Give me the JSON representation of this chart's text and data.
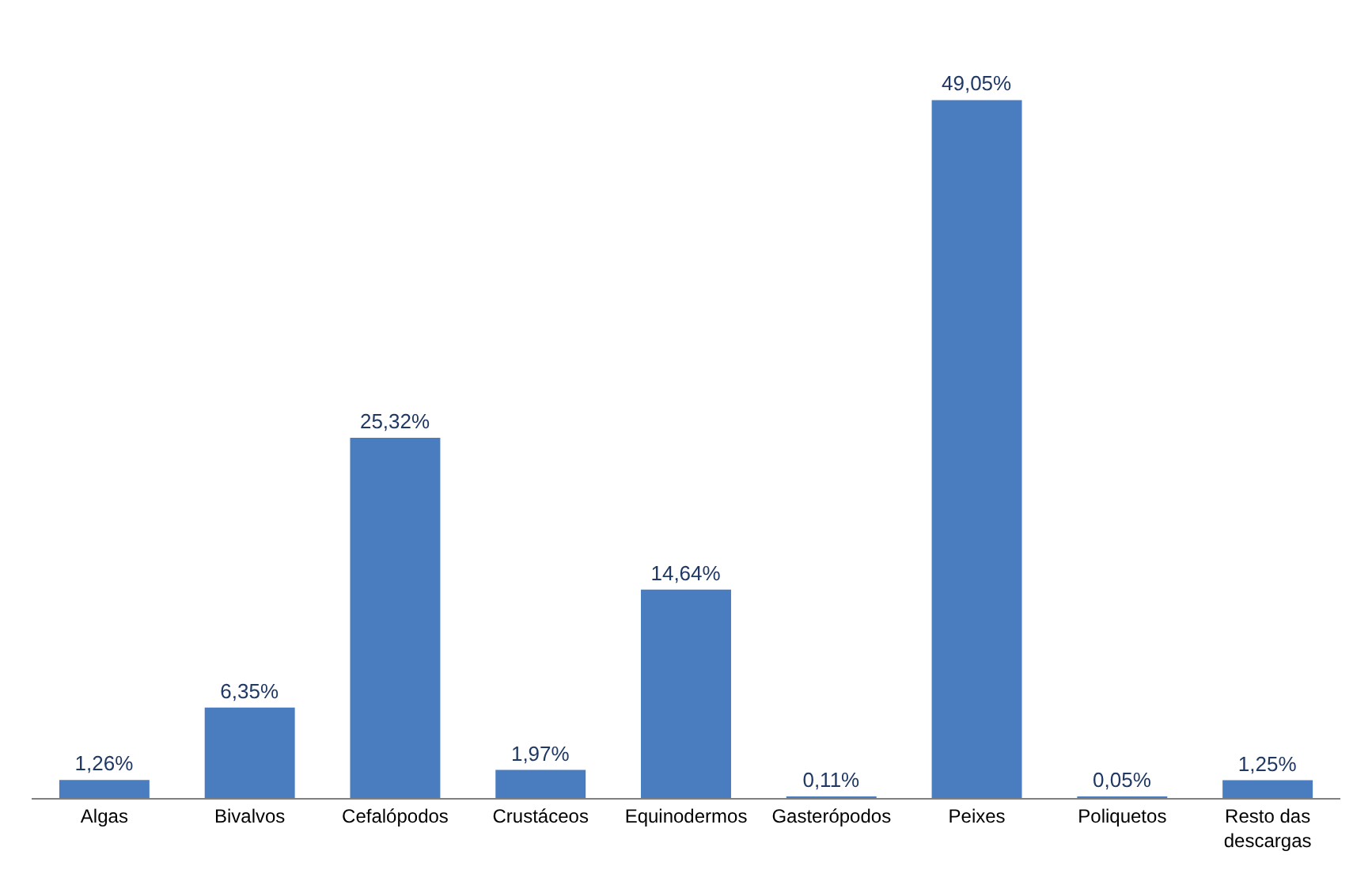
{
  "chart_data": {
    "type": "bar",
    "categories": [
      "Algas",
      "Bivalvos",
      "Cefalópodos",
      "Crustáceos",
      "Equinodermos",
      "Gasterópodos",
      "Peixes",
      "Poliquetos",
      "Resto das descargas"
    ],
    "values": [
      1.26,
      6.35,
      25.32,
      1.97,
      14.64,
      0.11,
      49.05,
      0.05,
      1.25
    ],
    "value_labels": [
      "1,26%",
      "6,35%",
      "25,32%",
      "1,97%",
      "14,64%",
      "0,11%",
      "49,05%",
      "0,05%",
      "1,25%"
    ],
    "color": "#4a7cc0",
    "legend": false
  }
}
